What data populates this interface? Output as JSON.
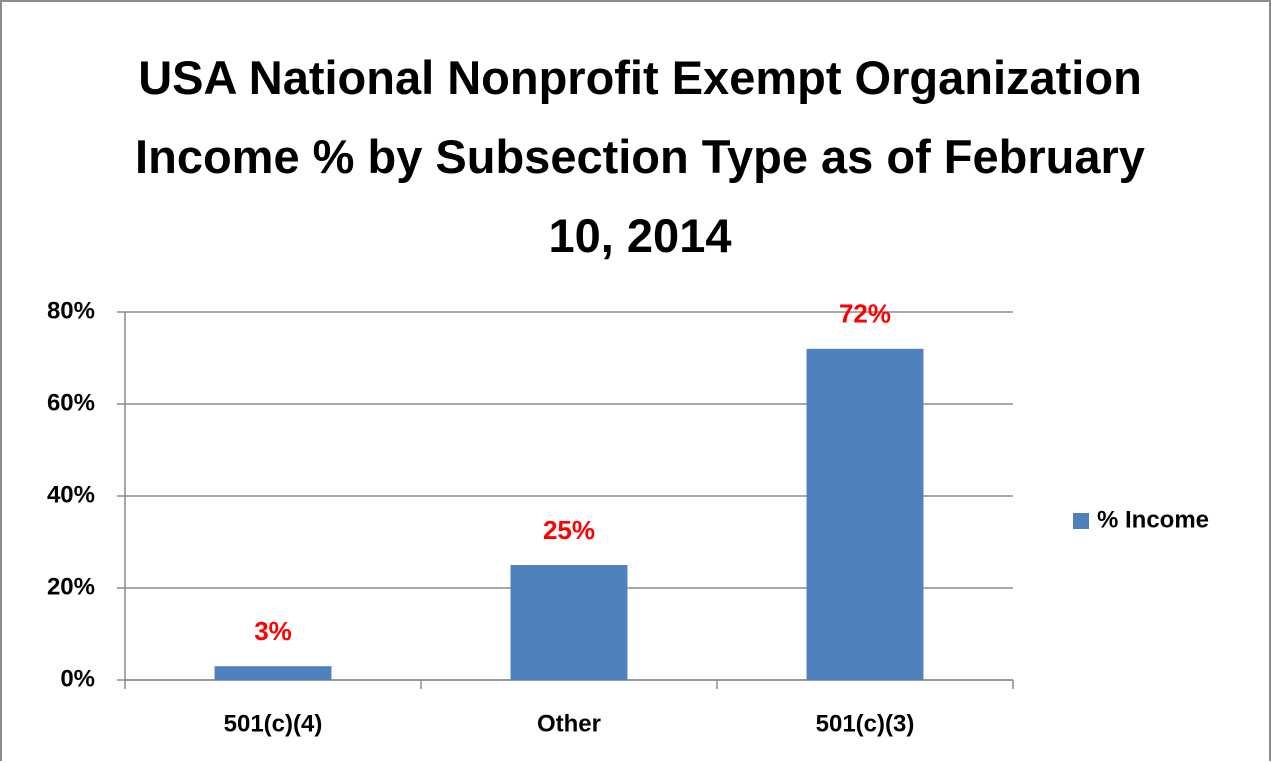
{
  "chart_data": {
    "type": "bar",
    "title": "USA National Nonprofit Exempt Organization Income % by Subsection Type as of February 10, 2014",
    "categories": [
      "501(c)(4)",
      "Other",
      "501(c)(3)"
    ],
    "series": [
      {
        "name": "% Income",
        "color": "#4f81bd",
        "values": [
          3,
          25,
          72
        ],
        "value_labels": [
          "3%",
          "25%",
          "72%"
        ]
      }
    ],
    "label_color": "#ff0000",
    "ylim": [
      0,
      80
    ],
    "yticks": [
      {
        "value": 0,
        "label": "0%"
      },
      {
        "value": 20,
        "label": "20%"
      },
      {
        "value": 40,
        "label": "40%"
      },
      {
        "value": 60,
        "label": "60%"
      },
      {
        "value": 80,
        "label": "80%"
      }
    ],
    "grid": true,
    "legend": "right"
  }
}
